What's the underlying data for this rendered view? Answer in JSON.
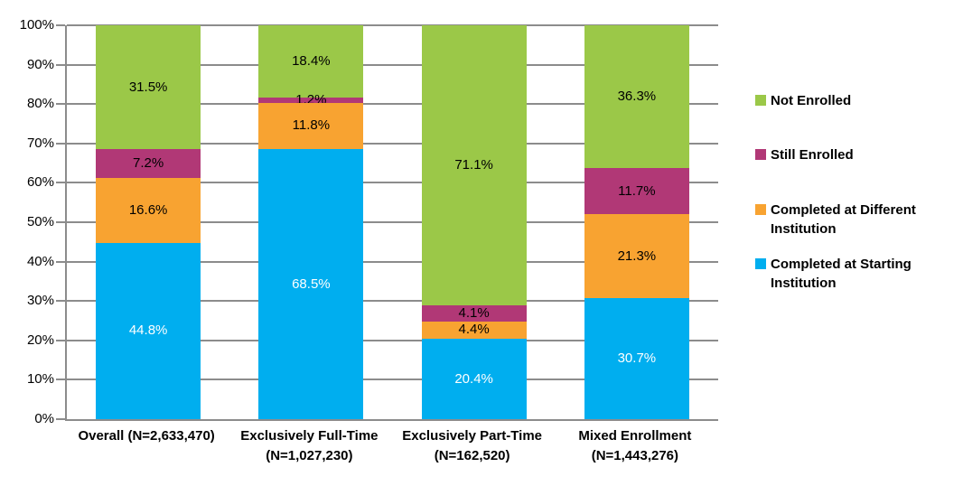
{
  "chart_data": {
    "type": "bar",
    "stacked": true,
    "title": "",
    "xlabel": "",
    "ylabel": "",
    "ylim": [
      0,
      100
    ],
    "grid": true,
    "legend_position": "right",
    "y_ticks": [
      "0%",
      "10%",
      "20%",
      "30%",
      "40%",
      "50%",
      "60%",
      "70%",
      "80%",
      "90%",
      "100%"
    ],
    "categories": [
      {
        "label": "Overall (N=2,633,470)",
        "lines": [
          "Overall (N=2,633,470)"
        ]
      },
      {
        "label": "Exclusively Full-Time (N=1,027,230)",
        "lines": [
          "Exclusively Full-Time",
          "(N=1,027,230)"
        ]
      },
      {
        "label": "Exclusively Part-Time (N=162,520)",
        "lines": [
          "Exclusively Part-Time",
          "(N=162,520)"
        ]
      },
      {
        "label": "Mixed Enrollment (N=1,443,276)",
        "lines": [
          "Mixed Enrollment",
          "(N=1,443,276)"
        ]
      }
    ],
    "series": [
      {
        "name": "Completed at Starting Institution",
        "color": "#00AEEF",
        "label_color": "#FFFFFF",
        "values": [
          44.8,
          68.5,
          20.4,
          30.7
        ],
        "labels": [
          "44.8%",
          "68.5%",
          "20.4%",
          "30.7%"
        ]
      },
      {
        "name": "Completed at Different Institution",
        "color": "#F8A331",
        "label_color": "#000000",
        "values": [
          16.6,
          11.8,
          4.4,
          21.3
        ],
        "labels": [
          "16.6%",
          "11.8%",
          "4.4%",
          "21.3%"
        ]
      },
      {
        "name": "Still Enrolled",
        "color": "#B13876",
        "label_color": "#000000",
        "values": [
          7.2,
          1.2,
          4.1,
          11.7
        ],
        "labels": [
          "7.2%",
          "1.2%",
          "4.1%",
          "11.7%"
        ]
      },
      {
        "name": "Not Enrolled",
        "color": "#9BC848",
        "label_color": "#000000",
        "values": [
          31.5,
          18.4,
          71.1,
          36.3
        ],
        "labels": [
          "31.5%",
          "18.4%",
          "71.1%",
          "36.3%"
        ]
      }
    ],
    "legend_items": [
      {
        "label": "Not Enrolled",
        "lines": [
          "Not Enrolled"
        ],
        "color": "#9BC848"
      },
      {
        "label": "Still Enrolled",
        "lines": [
          "Still Enrolled"
        ],
        "color": "#B13876"
      },
      {
        "label": "Completed at Different Institution",
        "lines": [
          "Completed at Different",
          "Institution"
        ],
        "color": "#F8A331"
      },
      {
        "label": "Completed at Starting Institution",
        "lines": [
          "Completed at Starting",
          "Institution"
        ],
        "color": "#00AEEF"
      }
    ]
  },
  "colors": {
    "background": "#FFFFFF",
    "axis": "#8C8C8C",
    "gridline": "#8C8C8C",
    "text": "#000000"
  }
}
